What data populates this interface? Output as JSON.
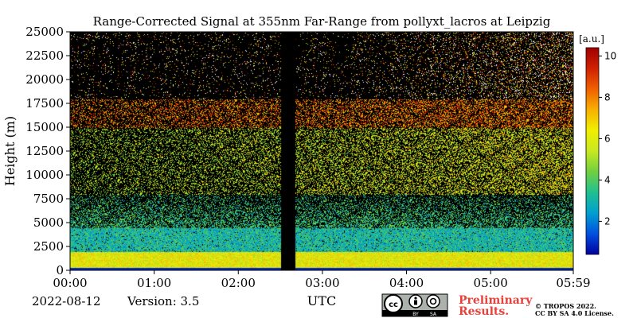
{
  "chart_data": {
    "type": "heatmap",
    "title": "Range-Corrected Signal at 355nm Far-Range from pollyxt_lacros at Leipzig",
    "xlabel": "UTC",
    "ylabel": "Height (m)",
    "x_ticks": [
      "00:00",
      "01:00",
      "02:00",
      "03:00",
      "04:00",
      "05:00",
      "05:59"
    ],
    "x_tick_hours": [
      0,
      1,
      2,
      3,
      4,
      5,
      5.983
    ],
    "xlim_hours": [
      0,
      5.983
    ],
    "y_ticks": [
      0,
      2500,
      5000,
      7500,
      10000,
      12500,
      15000,
      17500,
      20000,
      22500,
      25000
    ],
    "ylim": [
      0,
      25000
    ],
    "colorbar": {
      "unit": "[a.u.]",
      "ticks": [
        2,
        4,
        6,
        8,
        10
      ],
      "range": [
        0.4,
        10.4
      ],
      "colormap": [
        "#0000a0",
        "#0050e0",
        "#00a0d0",
        "#20c090",
        "#70d040",
        "#c8e820",
        "#f0f000",
        "#f8b000",
        "#f06000",
        "#d02000",
        "#a00000"
      ]
    },
    "data_gap_hours": [
      2.5,
      2.67
    ],
    "grid": false
  },
  "footer": {
    "date": "2022-08-12",
    "version": "Version: 3.5",
    "preliminary_line1": "Preliminary",
    "preliminary_line2": "Results.",
    "copyright_line1": "© TROPOS 2022.",
    "copyright_line2": "CC BY SA 4.0 License.",
    "license_badge": {
      "icons": [
        "cc-icon",
        "by-icon",
        "sa-icon"
      ],
      "labels": [
        "BY",
        "SA"
      ]
    }
  }
}
